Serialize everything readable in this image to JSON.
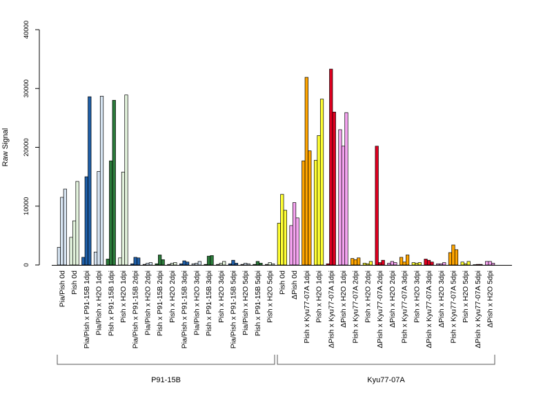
{
  "chart_data": {
    "type": "bar",
    "title": "",
    "xlabel": "",
    "ylabel": "Raw Signal",
    "ylim": [
      0,
      40000
    ],
    "yticks": [
      0,
      10000,
      20000,
      30000,
      40000
    ],
    "grid": false,
    "legend": "none",
    "categories": [
      "Pia/Pish 0d",
      "Pish 0d",
      "Pia/Pish x P91-15B 1dpi",
      "Pia/Pish x H2O 1dpi",
      "Pish x P91-15B 1dpi",
      "Pish x H2O 1dpi",
      "Pia/Pish x P91-15B 2dpi",
      "Pia/Pish x H2O 2dpi",
      "Pish x P91-15B 2dpi",
      "Pish x H2O 2dpi",
      "Pia/Pish x P91-15B 3dpi",
      "Pia/Pish x H2O 3dpi",
      "Pish x P91-15B 3dpi",
      "Pish x H2O 3dpi",
      "Pia/Pish x P91-15B 5dpi",
      "Pia/Pish x H2O 5dpi",
      "Pish x P91-15B 5dpi",
      "Pish x H2O 5dpi",
      "Pish 0d",
      "ΔPish 0d",
      "Pish x Kyu77-07A 1dpi",
      "Pish x H2O 1dpi",
      "ΔPish x Kyu77-07A 1dpi",
      "ΔPish x H2O 1dpi",
      "Pish x Kyu77-07A 2dpi",
      "Pish x H2O 2dpi",
      "ΔPish x Kyu77-07A 2dpi",
      "ΔPish x H2O 2dpi",
      "Pish x Kyu77-07A 3dpi",
      "Pish x H2O 3dpi",
      "ΔPish x Kyu77-07A 3dpi",
      "ΔPish x H2O 3dpi",
      "Pish x Kyu77-07A 5dpi",
      "Pish x H2O 5dpi",
      "ΔPish x Kyu77-07A 5dpi",
      "ΔPish x H2O 5dpi"
    ],
    "colors": [
      "#d6e4f2",
      "#e2f2dc",
      "#1f5fa8",
      "#d6e4f2",
      "#2b7a3a",
      "#e2f2dc",
      "#1f5fa8",
      "#d6e4f2",
      "#2b7a3a",
      "#e2f2dc",
      "#1f5fa8",
      "#d6e4f2",
      "#2b7a3a",
      "#e2f2dc",
      "#1f5fa8",
      "#d6e4f2",
      "#2b7a3a",
      "#e2f2dc",
      "#ffff33",
      "#f5a3f0",
      "#ffa500",
      "#ffff33",
      "#dd0020",
      "#f5a3f0",
      "#ffa500",
      "#ffff33",
      "#dd0020",
      "#f5a3f0",
      "#ffa500",
      "#ffff33",
      "#dd0020",
      "#f5a3f0",
      "#ffa500",
      "#ffff33",
      "#dd0020",
      "#f5a3f0"
    ],
    "values": [
      [
        3000,
        11500,
        12900
      ],
      [
        4700,
        7500,
        14200
      ],
      [
        1300,
        15000,
        28600
      ],
      [
        2200,
        15900,
        28700
      ],
      [
        1000,
        17700,
        28000
      ],
      [
        1200,
        15800,
        28900
      ],
      [
        200,
        1300,
        1200
      ],
      [
        100,
        300,
        400
      ],
      [
        200,
        1700,
        900
      ],
      [
        100,
        300,
        400
      ],
      [
        200,
        700,
        500
      ],
      [
        200,
        300,
        600
      ],
      [
        100,
        1500,
        1600
      ],
      [
        100,
        300,
        600
      ],
      [
        200,
        800,
        300
      ],
      [
        100,
        300,
        200
      ],
      [
        100,
        600,
        300
      ],
      [
        100,
        400,
        200
      ],
      [
        7100,
        12000,
        9300
      ],
      [
        6700,
        10600,
        8000
      ],
      [
        17700,
        31900,
        19400
      ],
      [
        17800,
        22000,
        28200
      ],
      [
        200,
        33300,
        26000
      ],
      [
        23000,
        20200,
        25900
      ],
      [
        1100,
        900,
        1200
      ],
      [
        300,
        200,
        600
      ],
      [
        20200,
        400,
        800
      ],
      [
        300,
        600,
        400
      ],
      [
        1300,
        500,
        1700
      ],
      [
        400,
        300,
        400
      ],
      [
        1000,
        800,
        500
      ],
      [
        200,
        200,
        400
      ],
      [
        2100,
        3400,
        2600
      ],
      [
        500,
        200,
        600
      ],
      [
        50,
        100,
        100
      ],
      [
        600,
        600,
        300
      ]
    ],
    "groups": [
      {
        "label": "P91-15B",
        "from": 0,
        "to": 17
      },
      {
        "label": "Kyu77-07A",
        "from": 18,
        "to": 35
      }
    ]
  }
}
